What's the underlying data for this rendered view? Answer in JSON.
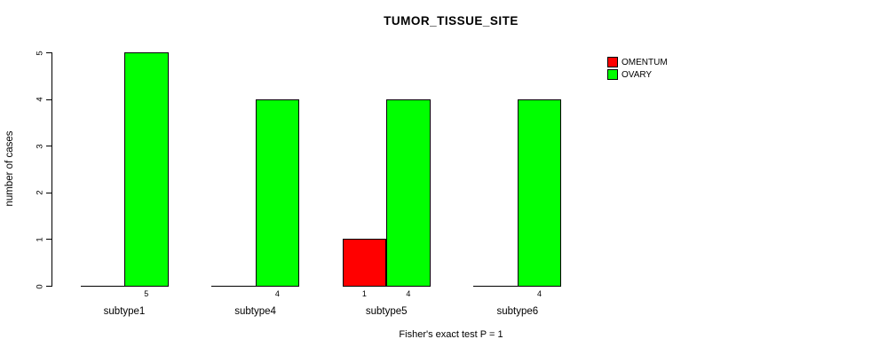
{
  "title": "TUMOR_TISSUE_SITE",
  "footer": "Fisher's exact test P = 1",
  "y_axis_title": "number of cases",
  "legend": {
    "items": [
      {
        "label": "OMENTUM",
        "color": "#ff0000"
      },
      {
        "label": "OVARY",
        "color": "#00ff00"
      }
    ]
  },
  "chart_data": {
    "type": "bar",
    "title": "TUMOR_TISSUE_SITE",
    "subtitle": "Fisher's exact test P = 1",
    "xlabel": "",
    "ylabel": "number of cases",
    "categories": [
      "subtype1",
      "subtype4",
      "subtype5",
      "subtype6"
    ],
    "series": [
      {
        "name": "OMENTUM",
        "color": "#ff0000",
        "values": [
          0,
          0,
          1,
          0
        ]
      },
      {
        "name": "OVARY",
        "color": "#00ff00",
        "values": [
          5,
          4,
          4,
          4
        ]
      }
    ],
    "bar_count_labels": [
      [
        "",
        "5"
      ],
      [
        "",
        "4"
      ],
      [
        "1",
        "4"
      ],
      [
        "",
        "4"
      ]
    ],
    "yticks": [
      0,
      1,
      2,
      3,
      4,
      5
    ],
    "ylim": [
      0,
      5
    ],
    "grid": false,
    "legend_position": "top-right",
    "bar_style": "grouped, black 1px outline, zero-height bars drawn as baseline segments"
  }
}
